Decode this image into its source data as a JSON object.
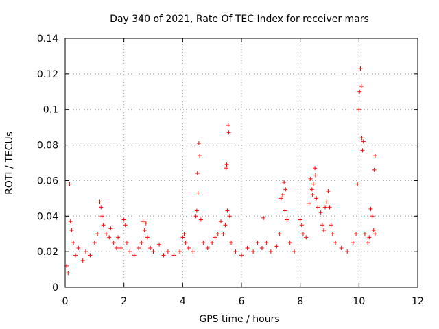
{
  "chart_data": {
    "type": "scatter",
    "title": "Day 340 of 2021, Rate Of TEC Index for receiver mars",
    "xlabel": "GPS time / hours",
    "ylabel": "ROTI / TECUs",
    "xlim": [
      0,
      12
    ],
    "ylim": [
      0,
      0.14
    ],
    "x_ticks": [
      0,
      2,
      4,
      6,
      8,
      10,
      12
    ],
    "y_ticks": [
      0,
      0.02,
      0.04,
      0.06,
      0.08,
      0.1,
      0.12,
      0.14
    ],
    "x_tick_labels": [
      "0",
      "2",
      "4",
      "6",
      "8",
      "10",
      "12"
    ],
    "y_tick_labels": [
      "0",
      "0.02",
      "0.04",
      "0.06",
      "0.08",
      "0.1",
      "0.12",
      "0.14"
    ],
    "grid": true,
    "marker": "+",
    "color": "#ff0000",
    "series": [
      {
        "name": "ROTI",
        "points": [
          [
            0.05,
            0.012
          ],
          [
            0.1,
            0.008
          ],
          [
            0.15,
            0.058
          ],
          [
            0.18,
            0.037
          ],
          [
            0.22,
            0.032
          ],
          [
            0.28,
            0.025
          ],
          [
            0.35,
            0.018
          ],
          [
            0.45,
            0.022
          ],
          [
            0.6,
            0.015
          ],
          [
            0.7,
            0.02
          ],
          [
            0.85,
            0.018
          ],
          [
            1.0,
            0.025
          ],
          [
            1.1,
            0.03
          ],
          [
            1.18,
            0.048
          ],
          [
            1.22,
            0.045
          ],
          [
            1.25,
            0.04
          ],
          [
            1.3,
            0.035
          ],
          [
            1.4,
            0.03
          ],
          [
            1.5,
            0.028
          ],
          [
            1.55,
            0.033
          ],
          [
            1.65,
            0.025
          ],
          [
            1.75,
            0.022
          ],
          [
            1.8,
            0.028
          ],
          [
            1.9,
            0.022
          ],
          [
            2.0,
            0.038
          ],
          [
            2.05,
            0.035
          ],
          [
            2.1,
            0.025
          ],
          [
            2.2,
            0.02
          ],
          [
            2.35,
            0.018
          ],
          [
            2.5,
            0.022
          ],
          [
            2.6,
            0.025
          ],
          [
            2.65,
            0.037
          ],
          [
            2.7,
            0.032
          ],
          [
            2.75,
            0.036
          ],
          [
            2.8,
            0.028
          ],
          [
            2.9,
            0.022
          ],
          [
            3.0,
            0.02
          ],
          [
            3.2,
            0.024
          ],
          [
            3.35,
            0.018
          ],
          [
            3.5,
            0.02
          ],
          [
            3.7,
            0.018
          ],
          [
            3.9,
            0.02
          ],
          [
            4.0,
            0.028
          ],
          [
            4.05,
            0.03
          ],
          [
            4.1,
            0.025
          ],
          [
            4.2,
            0.022
          ],
          [
            4.35,
            0.02
          ],
          [
            4.45,
            0.04
          ],
          [
            4.48,
            0.043
          ],
          [
            4.5,
            0.064
          ],
          [
            4.52,
            0.053
          ],
          [
            4.55,
            0.081
          ],
          [
            4.58,
            0.074
          ],
          [
            4.62,
            0.038
          ],
          [
            4.7,
            0.025
          ],
          [
            4.85,
            0.022
          ],
          [
            5.0,
            0.025
          ],
          [
            5.1,
            0.028
          ],
          [
            5.2,
            0.03
          ],
          [
            5.3,
            0.037
          ],
          [
            5.38,
            0.03
          ],
          [
            5.45,
            0.035
          ],
          [
            5.48,
            0.067
          ],
          [
            5.5,
            0.069
          ],
          [
            5.52,
            0.043
          ],
          [
            5.55,
            0.091
          ],
          [
            5.57,
            0.087
          ],
          [
            5.6,
            0.04
          ],
          [
            5.65,
            0.025
          ],
          [
            5.8,
            0.02
          ],
          [
            6.0,
            0.018
          ],
          [
            6.2,
            0.022
          ],
          [
            6.4,
            0.02
          ],
          [
            6.55,
            0.025
          ],
          [
            6.7,
            0.022
          ],
          [
            6.75,
            0.039
          ],
          [
            6.85,
            0.025
          ],
          [
            7.0,
            0.02
          ],
          [
            7.2,
            0.023
          ],
          [
            7.3,
            0.03
          ],
          [
            7.35,
            0.05
          ],
          [
            7.4,
            0.052
          ],
          [
            7.45,
            0.059
          ],
          [
            7.48,
            0.043
          ],
          [
            7.5,
            0.055
          ],
          [
            7.55,
            0.038
          ],
          [
            7.65,
            0.025
          ],
          [
            7.8,
            0.02
          ],
          [
            8.0,
            0.038
          ],
          [
            8.05,
            0.035
          ],
          [
            8.1,
            0.03
          ],
          [
            8.2,
            0.028
          ],
          [
            8.3,
            0.047
          ],
          [
            8.35,
            0.061
          ],
          [
            8.4,
            0.055
          ],
          [
            8.42,
            0.052
          ],
          [
            8.45,
            0.058
          ],
          [
            8.5,
            0.067
          ],
          [
            8.52,
            0.063
          ],
          [
            8.55,
            0.05
          ],
          [
            8.6,
            0.045
          ],
          [
            8.7,
            0.042
          ],
          [
            8.75,
            0.035
          ],
          [
            8.8,
            0.032
          ],
          [
            8.85,
            0.045
          ],
          [
            8.9,
            0.048
          ],
          [
            8.95,
            0.054
          ],
          [
            9.0,
            0.045
          ],
          [
            9.05,
            0.035
          ],
          [
            9.1,
            0.03
          ],
          [
            9.2,
            0.025
          ],
          [
            9.4,
            0.022
          ],
          [
            9.6,
            0.02
          ],
          [
            9.8,
            0.025
          ],
          [
            9.9,
            0.03
          ],
          [
            9.95,
            0.058
          ],
          [
            10.0,
            0.1
          ],
          [
            10.02,
            0.11
          ],
          [
            10.05,
            0.123
          ],
          [
            10.08,
            0.113
          ],
          [
            10.1,
            0.084
          ],
          [
            10.12,
            0.077
          ],
          [
            10.15,
            0.082
          ],
          [
            10.2,
            0.03
          ],
          [
            10.3,
            0.025
          ],
          [
            10.35,
            0.028
          ],
          [
            10.4,
            0.044
          ],
          [
            10.45,
            0.04
          ],
          [
            10.5,
            0.032
          ],
          [
            10.52,
            0.066
          ],
          [
            10.55,
            0.074
          ],
          [
            10.55,
            0.03
          ]
        ]
      }
    ]
  }
}
